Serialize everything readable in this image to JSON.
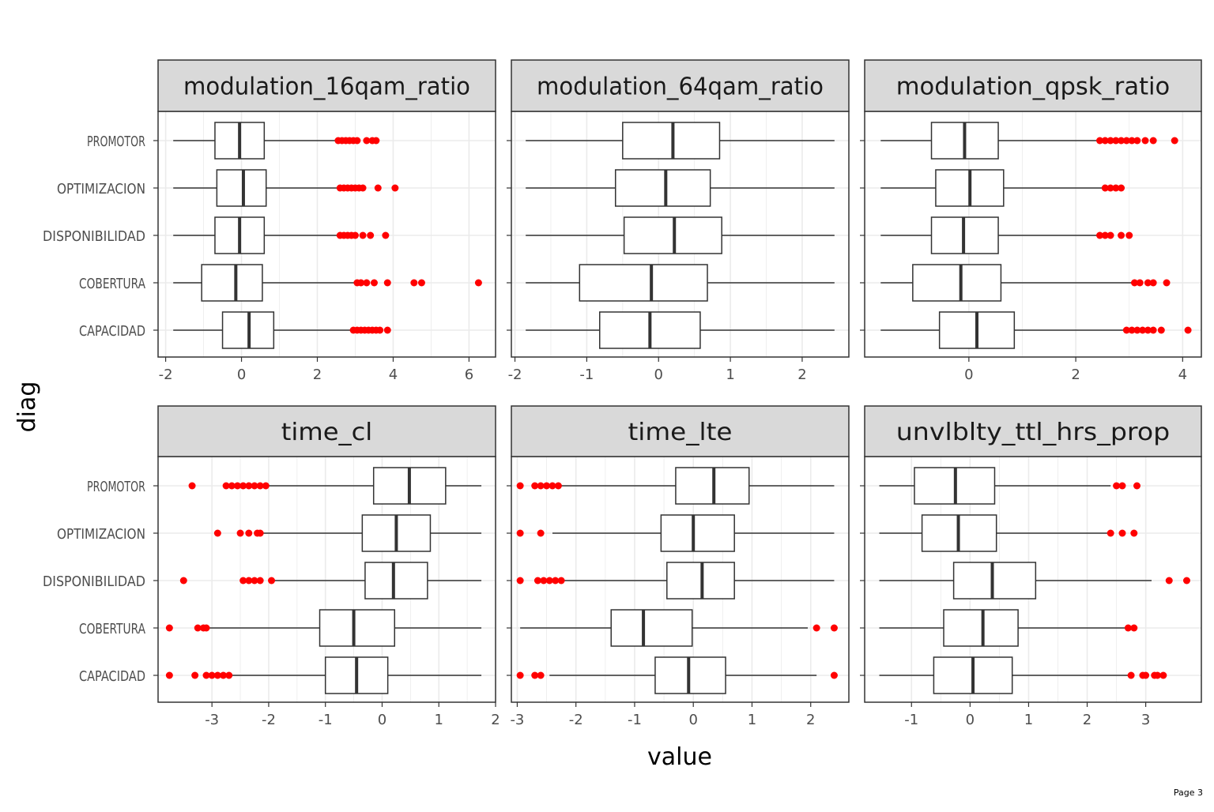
{
  "page_label": "Page 3",
  "chart_data": {
    "type": "boxplot",
    "xlabel": "value",
    "ylabel": "diag",
    "categories": [
      "PROMOTOR",
      "OPTIMIZACION",
      "DISPONIBILIDAD",
      "COBERTURA",
      "CAPACIDAD"
    ],
    "colors": {
      "outlier": "#ff0000",
      "strip_bg": "#d9d9d9",
      "box": "#333333",
      "grid": "#ebebeb"
    },
    "grid": true,
    "panels": [
      {
        "title": "modulation_16qam_ratio",
        "xlim": [
          -2.2,
          6.7
        ],
        "xticks": [
          -2,
          0,
          2,
          4,
          6
        ],
        "xtick_labels": [
          "-2",
          "0",
          "2",
          "4",
          "6"
        ],
        "boxes": [
          {
            "category": "PROMOTOR",
            "whisker_low": -1.8,
            "q1": -0.7,
            "median": -0.05,
            "q3": 0.6,
            "whisker_high": 2.5,
            "outliers": [
              2.55,
              2.65,
              2.75,
              2.85,
              2.95,
              3.05,
              3.3,
              3.45,
              3.55
            ]
          },
          {
            "category": "OPTIMIZACION",
            "whisker_low": -1.8,
            "q1": -0.65,
            "median": 0.05,
            "q3": 0.65,
            "whisker_high": 2.55,
            "outliers": [
              2.6,
              2.7,
              2.8,
              2.9,
              3.0,
              3.1,
              3.2,
              3.6,
              4.05
            ]
          },
          {
            "category": "DISPONIBILIDAD",
            "whisker_low": -1.8,
            "q1": -0.7,
            "median": -0.05,
            "q3": 0.6,
            "whisker_high": 2.55,
            "outliers": [
              2.6,
              2.7,
              2.8,
              2.9,
              3.0,
              3.2,
              3.4,
              3.8
            ]
          },
          {
            "category": "COBERTURA",
            "whisker_low": -1.8,
            "q1": -1.05,
            "median": -0.15,
            "q3": 0.55,
            "whisker_high": 3.0,
            "outliers": [
              3.05,
              3.15,
              3.3,
              3.5,
              3.85,
              4.55,
              4.75,
              6.25
            ]
          },
          {
            "category": "CAPACIDAD",
            "whisker_low": -1.8,
            "q1": -0.5,
            "median": 0.2,
            "q3": 0.85,
            "whisker_high": 2.9,
            "outliers": [
              2.95,
              3.05,
              3.15,
              3.25,
              3.35,
              3.45,
              3.55,
              3.65,
              3.85
            ]
          }
        ]
      },
      {
        "title": "modulation_64qam_ratio",
        "xlim": [
          -2.05,
          2.65
        ],
        "xticks": [
          -2,
          -1,
          0,
          1,
          2
        ],
        "xtick_labels": [
          "-2",
          "-1",
          "0",
          "1",
          "2"
        ],
        "boxes": [
          {
            "category": "PROMOTOR",
            "whisker_low": -1.85,
            "q1": -0.5,
            "median": 0.2,
            "q3": 0.85,
            "whisker_high": 2.45,
            "outliers": []
          },
          {
            "category": "OPTIMIZACION",
            "whisker_low": -1.85,
            "q1": -0.6,
            "median": 0.1,
            "q3": 0.72,
            "whisker_high": 2.45,
            "outliers": []
          },
          {
            "category": "DISPONIBILIDAD",
            "whisker_low": -1.85,
            "q1": -0.48,
            "median": 0.22,
            "q3": 0.88,
            "whisker_high": 2.45,
            "outliers": []
          },
          {
            "category": "COBERTURA",
            "whisker_low": -1.85,
            "q1": -1.1,
            "median": -0.1,
            "q3": 0.68,
            "whisker_high": 2.45,
            "outliers": []
          },
          {
            "category": "CAPACIDAD",
            "whisker_low": -1.85,
            "q1": -0.82,
            "median": -0.12,
            "q3": 0.58,
            "whisker_high": 2.45,
            "outliers": []
          }
        ]
      },
      {
        "title": "modulation_qpsk_ratio",
        "xlim": [
          -1.95,
          4.35
        ],
        "xticks": [
          0,
          2,
          4
        ],
        "xtick_labels": [
          "0",
          "2",
          "4"
        ],
        "boxes": [
          {
            "category": "PROMOTOR",
            "whisker_low": -1.65,
            "q1": -0.7,
            "median": -0.08,
            "q3": 0.55,
            "whisker_high": 2.4,
            "outliers": [
              2.45,
              2.55,
              2.65,
              2.75,
              2.85,
              2.95,
              3.05,
              3.15,
              3.3,
              3.45,
              3.85
            ]
          },
          {
            "category": "OPTIMIZACION",
            "whisker_low": -1.65,
            "q1": -0.62,
            "median": 0.02,
            "q3": 0.65,
            "whisker_high": 2.5,
            "outliers": [
              2.55,
              2.65,
              2.75,
              2.85
            ]
          },
          {
            "category": "DISPONIBILIDAD",
            "whisker_low": -1.65,
            "q1": -0.7,
            "median": -0.1,
            "q3": 0.55,
            "whisker_high": 2.4,
            "outliers": [
              2.45,
              2.55,
              2.65,
              2.85,
              3.0
            ]
          },
          {
            "category": "COBERTURA",
            "whisker_low": -1.65,
            "q1": -1.05,
            "median": -0.15,
            "q3": 0.6,
            "whisker_high": 3.05,
            "outliers": [
              3.1,
              3.2,
              3.35,
              3.45,
              3.7
            ]
          },
          {
            "category": "CAPACIDAD",
            "whisker_low": -1.65,
            "q1": -0.55,
            "median": 0.15,
            "q3": 0.85,
            "whisker_high": 2.9,
            "outliers": [
              2.95,
              3.05,
              3.15,
              3.25,
              3.35,
              3.45,
              3.6,
              4.1
            ]
          }
        ]
      },
      {
        "title": "time_cl",
        "xlim": [
          -3.95,
          2.0
        ],
        "xticks": [
          -3,
          -2,
          -1,
          0,
          1,
          2
        ],
        "xtick_labels": [
          "-3",
          "-2",
          "-1",
          "0",
          "1",
          "2"
        ],
        "boxes": [
          {
            "category": "PROMOTOR",
            "whisker_low": -2.0,
            "q1": -0.15,
            "median": 0.48,
            "q3": 1.12,
            "whisker_high": 1.75,
            "outliers": [
              -3.35,
              -2.75,
              -2.65,
              -2.55,
              -2.45,
              -2.35,
              -2.25,
              -2.15,
              -2.05
            ]
          },
          {
            "category": "OPTIMIZACION",
            "whisker_low": -2.1,
            "q1": -0.35,
            "median": 0.25,
            "q3": 0.85,
            "whisker_high": 1.75,
            "outliers": [
              -2.9,
              -2.5,
              -2.35,
              -2.2,
              -2.15
            ]
          },
          {
            "category": "DISPONIBILIDAD",
            "whisker_low": -1.9,
            "q1": -0.3,
            "median": 0.2,
            "q3": 0.8,
            "whisker_high": 1.75,
            "outliers": [
              -3.5,
              -2.45,
              -2.35,
              -2.25,
              -2.15,
              -1.95
            ]
          },
          {
            "category": "COBERTURA",
            "whisker_low": -3.05,
            "q1": -1.1,
            "median": -0.5,
            "q3": 0.22,
            "whisker_high": 1.75,
            "outliers": [
              -3.75,
              -3.25,
              -3.15,
              -3.1
            ]
          },
          {
            "category": "CAPACIDAD",
            "whisker_low": -2.65,
            "q1": -1.0,
            "median": -0.45,
            "q3": 0.1,
            "whisker_high": 1.75,
            "outliers": [
              -3.75,
              -3.3,
              -3.1,
              -3.0,
              -2.9,
              -2.8,
              -2.7
            ]
          }
        ]
      },
      {
        "title": "time_lte",
        "xlim": [
          -3.1,
          2.65
        ],
        "xticks": [
          -3,
          -2,
          -1,
          0,
          1,
          2
        ],
        "xtick_labels": [
          "-3",
          "-2",
          "-1",
          "0",
          "1",
          "2"
        ],
        "boxes": [
          {
            "category": "PROMOTOR",
            "whisker_low": -2.25,
            "q1": -0.3,
            "median": 0.35,
            "q3": 0.95,
            "whisker_high": 2.4,
            "outliers": [
              -2.95,
              -2.7,
              -2.6,
              -2.5,
              -2.4,
              -2.3
            ]
          },
          {
            "category": "OPTIMIZACION",
            "whisker_low": -2.4,
            "q1": -0.55,
            "median": 0.0,
            "q3": 0.7,
            "whisker_high": 2.4,
            "outliers": [
              -2.95,
              -2.6
            ]
          },
          {
            "category": "DISPONIBILIDAD",
            "whisker_low": -2.25,
            "q1": -0.45,
            "median": 0.15,
            "q3": 0.7,
            "whisker_high": 2.4,
            "outliers": [
              -2.95,
              -2.65,
              -2.55,
              -2.45,
              -2.35,
              -2.25
            ]
          },
          {
            "category": "COBERTURA",
            "whisker_low": -2.95,
            "q1": -1.4,
            "median": -0.85,
            "q3": -0.02,
            "whisker_high": 1.95,
            "outliers": [
              2.1,
              2.4
            ]
          },
          {
            "category": "CAPACIDAD",
            "whisker_low": -2.45,
            "q1": -0.65,
            "median": -0.08,
            "q3": 0.55,
            "whisker_high": 2.1,
            "outliers": [
              -2.95,
              -2.7,
              -2.6,
              2.4
            ]
          }
        ]
      },
      {
        "title": "unvlblty_ttl_hrs_prop",
        "xlim": [
          -1.8,
          3.95
        ],
        "xticks": [
          -1,
          0,
          1,
          2,
          3
        ],
        "xtick_labels": [
          "-1",
          "0",
          "1",
          "2",
          "3"
        ],
        "boxes": [
          {
            "category": "PROMOTOR",
            "whisker_low": -1.55,
            "q1": -0.95,
            "median": -0.25,
            "q3": 0.42,
            "whisker_high": 2.4,
            "outliers": [
              2.5,
              2.6,
              2.85
            ]
          },
          {
            "category": "OPTIMIZACION",
            "whisker_low": -1.55,
            "q1": -0.82,
            "median": -0.2,
            "q3": 0.45,
            "whisker_high": 2.35,
            "outliers": [
              2.4,
              2.6,
              2.8
            ]
          },
          {
            "category": "DISPONIBILIDAD",
            "whisker_low": -1.55,
            "q1": -0.28,
            "median": 0.38,
            "q3": 1.12,
            "whisker_high": 3.1,
            "outliers": [
              3.4,
              3.7
            ]
          },
          {
            "category": "COBERTURA",
            "whisker_low": -1.55,
            "q1": -0.45,
            "median": 0.22,
            "q3": 0.82,
            "whisker_high": 2.65,
            "outliers": [
              2.7,
              2.8
            ]
          },
          {
            "category": "CAPACIDAD",
            "whisker_low": -1.55,
            "q1": -0.62,
            "median": 0.05,
            "q3": 0.72,
            "whisker_high": 2.7,
            "outliers": [
              2.75,
              2.95,
              3.0,
              3.15,
              3.2,
              3.3
            ]
          }
        ]
      }
    ]
  }
}
